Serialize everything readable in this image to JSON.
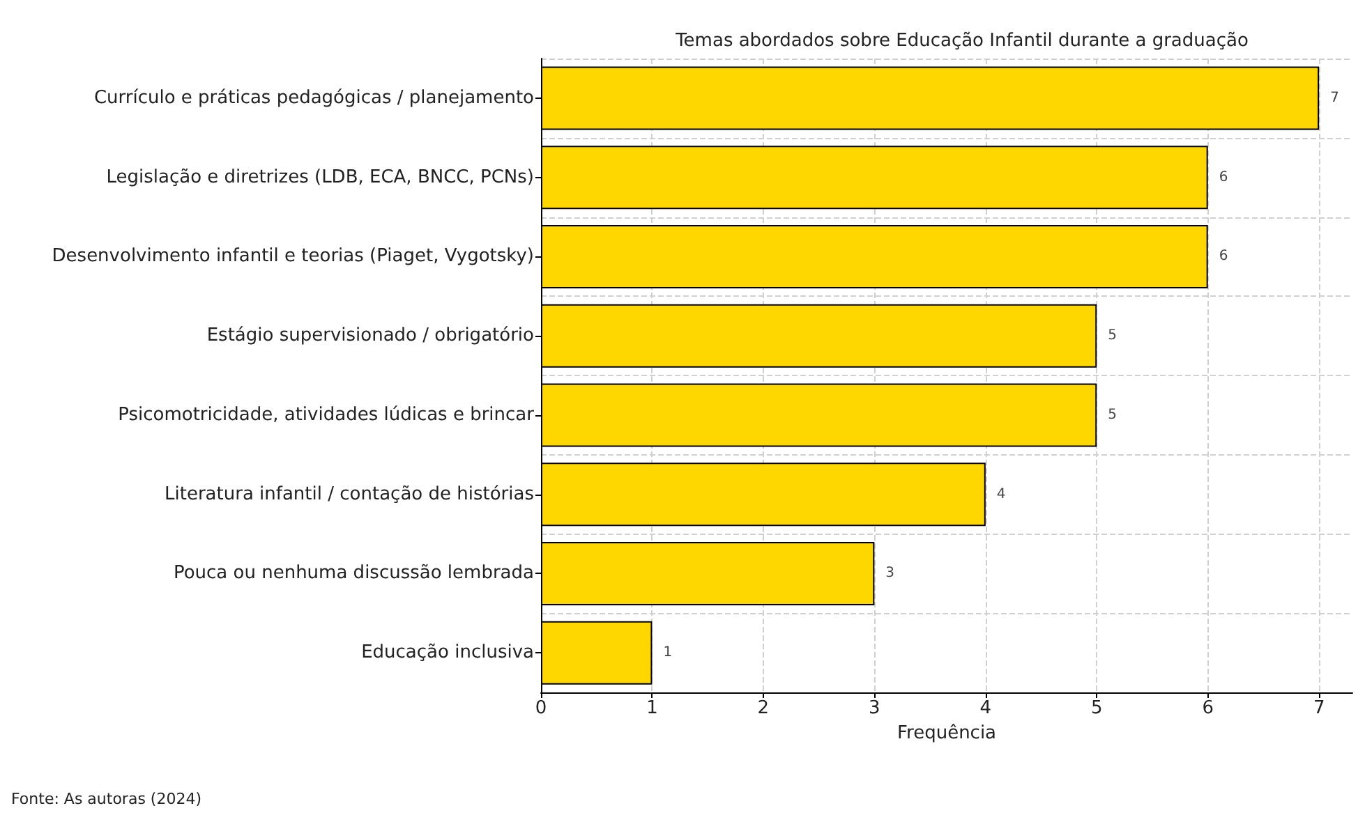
{
  "chart_data": {
    "type": "bar",
    "orientation": "horizontal",
    "title": "Temas abordados sobre Educação Infantil durante a graduação",
    "xlabel": "Frequência",
    "categories": [
      "Currículo e práticas pedagógicas / planejamento",
      "Legislação e diretrizes (LDB, ECA, BNCC, PCNs)",
      "Desenvolvimento infantil e teorias (Piaget, Vygotsky)",
      "Estágio supervisionado / obrigatório",
      "Psicomotricidade, atividades lúdicas e brincar",
      "Literatura infantil / contação de histórias",
      "Pouca ou nenhuma discussão lembrada",
      "Educação inclusiva"
    ],
    "values": [
      7,
      6,
      6,
      5,
      5,
      4,
      3,
      1
    ],
    "color": "#ffd700",
    "xlim": [
      0,
      7.3
    ],
    "xticks": [
      0,
      1,
      2,
      3,
      4,
      5,
      6,
      7
    ],
    "grid": true,
    "data_labels": true,
    "annotations": [
      "Fonte: As autoras (2024)"
    ]
  }
}
